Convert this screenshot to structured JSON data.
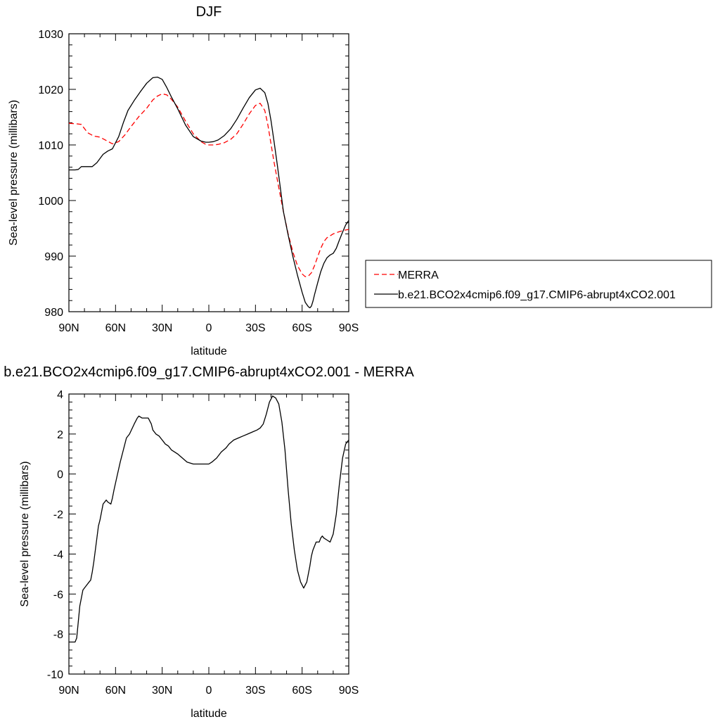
{
  "chart_data": [
    {
      "type": "line",
      "title": "DJF",
      "xlabel": "latitude",
      "ylabel": "Sea-level pressure (millibars)",
      "xlim": [
        90,
        -90
      ],
      "ylim": [
        980,
        1030
      ],
      "x_ticks": [
        90,
        60,
        30,
        0,
        -30,
        -60,
        -90
      ],
      "x_tick_labels": [
        "90N",
        "60N",
        "30N",
        "0",
        "30S",
        "60S",
        "90S"
      ],
      "y_ticks": [
        980,
        990,
        1000,
        1010,
        1020,
        1030
      ],
      "y_tick_labels": [
        "980",
        "990",
        "1000",
        "1010",
        "1020",
        "1030"
      ],
      "grid": false,
      "legend_position": "right",
      "series": [
        {
          "name": "MERRA",
          "color": "#ff0000",
          "dash": "dashed",
          "x": [
            90,
            85,
            82,
            78,
            74,
            70,
            66,
            62,
            58,
            54,
            50,
            45,
            40,
            36,
            33,
            30,
            27,
            24,
            20,
            15,
            10,
            5,
            2,
            0,
            -3,
            -6,
            -10,
            -14,
            -18,
            -22,
            -26,
            -30,
            -33,
            -36,
            -38,
            -40,
            -42,
            -45,
            -48,
            -51,
            -54,
            -57,
            -60,
            -62,
            -64,
            -66,
            -68,
            -70,
            -72,
            -74,
            -76,
            -80,
            -84,
            -88,
            -90
          ],
          "y": [
            1013.9,
            1013.8,
            1013.7,
            1012.2,
            1011.6,
            1011.4,
            1010.8,
            1010.2,
            1010.6,
            1011.8,
            1013.3,
            1015.1,
            1016.6,
            1018.1,
            1018.8,
            1019.2,
            1019.0,
            1018.2,
            1016.8,
            1014.3,
            1012.0,
            1010.6,
            1010.1,
            1010.0,
            1010.0,
            1010.1,
            1010.4,
            1011.0,
            1012.0,
            1013.7,
            1015.6,
            1017.1,
            1017.5,
            1016.2,
            1013.6,
            1010.2,
            1006.8,
            1002.3,
            998.0,
            994.0,
            990.8,
            988.3,
            986.8,
            986.3,
            986.4,
            987.0,
            988.3,
            989.9,
            991.4,
            992.6,
            993.3,
            994.0,
            994.4,
            994.7,
            994.8
          ]
        },
        {
          "name": "b.e21.BCO2x4cmip6.f09_g17.CMIP6-abrupt4xCO2.001",
          "color": "#000000",
          "dash": "solid",
          "x": [
            90,
            86,
            84,
            82,
            78,
            75,
            72,
            68,
            65,
            62,
            58,
            55,
            52,
            48,
            44,
            40,
            36,
            33,
            30,
            27,
            24,
            20,
            15,
            10,
            5,
            2,
            0,
            -3,
            -6,
            -10,
            -14,
            -18,
            -22,
            -26,
            -30,
            -33,
            -36,
            -38,
            -40,
            -42,
            -44,
            -46,
            -48,
            -51,
            -54,
            -57,
            -60,
            -62,
            -64,
            -65,
            -66,
            -67,
            -68,
            -70,
            -72,
            -74,
            -76,
            -78,
            -80,
            -82,
            -84,
            -86,
            -88,
            -90
          ],
          "y": [
            1005.5,
            1005.5,
            1005.6,
            1006.1,
            1006.1,
            1006.1,
            1006.8,
            1008.3,
            1008.9,
            1009.3,
            1011.5,
            1014.0,
            1016.2,
            1018.0,
            1019.6,
            1021.1,
            1022.1,
            1022.2,
            1021.8,
            1020.3,
            1018.6,
            1016.5,
            1013.6,
            1011.5,
            1010.7,
            1010.5,
            1010.5,
            1010.6,
            1010.9,
            1011.7,
            1012.9,
            1014.6,
            1016.6,
            1018.5,
            1019.9,
            1020.2,
            1019.4,
            1017.5,
            1014.4,
            1010.5,
            1006.5,
            1002.3,
            998.0,
            993.8,
            990.0,
            986.6,
            983.5,
            981.7,
            980.9,
            980.7,
            981.0,
            981.9,
            983.1,
            985.2,
            987.2,
            988.7,
            989.7,
            990.2,
            990.5,
            991.4,
            992.9,
            994.3,
            995.6,
            996.4
          ]
        }
      ]
    },
    {
      "type": "line",
      "title": "b.e21.BCO2x4cmip6.f09_g17.CMIP6-abrupt4xCO2.001 - MERRA",
      "xlabel": "latitude",
      "ylabel": "Sea-level pressure (millibars)",
      "xlim": [
        90,
        -90
      ],
      "ylim": [
        -10,
        4
      ],
      "x_ticks": [
        90,
        60,
        30,
        0,
        -30,
        -60,
        -90
      ],
      "x_tick_labels": [
        "90N",
        "60N",
        "30N",
        "0",
        "30S",
        "60S",
        "90S"
      ],
      "y_ticks": [
        -10,
        -8,
        -6,
        -4,
        -2,
        0,
        2,
        4
      ],
      "y_tick_labels": [
        "-10",
        "-8",
        "-6",
        "-4",
        "-2",
        "0",
        "2",
        "4"
      ],
      "grid": false,
      "series": [
        {
          "color": "#000000",
          "dash": "solid",
          "x": [
            90,
            86,
            85,
            84,
            83,
            82,
            81,
            79,
            77,
            76,
            75,
            74,
            72,
            71,
            70,
            68,
            66,
            65,
            63,
            62,
            61,
            59,
            57,
            55,
            53,
            51,
            48,
            46,
            45,
            43,
            41,
            39,
            37,
            36,
            34,
            32,
            30,
            29,
            28,
            26,
            24,
            22,
            20,
            17,
            14,
            10,
            7,
            4,
            2,
            1,
            0,
            -2,
            -5,
            -8,
            -11,
            -13,
            -16,
            -19,
            -22,
            -25,
            -28,
            -31,
            -33,
            -35,
            -37,
            -39,
            -41,
            -43,
            -45,
            -47,
            -49,
            -51,
            -53,
            -55,
            -57,
            -59,
            -61,
            -63,
            -65,
            -66,
            -67,
            -69,
            -71,
            -72,
            -73,
            -74,
            -76,
            -78,
            -80,
            -82,
            -84,
            -86,
            -88,
            -89,
            -90
          ],
          "y": [
            -8.4,
            -8.4,
            -8.2,
            -7.4,
            -6.6,
            -6.2,
            -5.8,
            -5.6,
            -5.4,
            -5.3,
            -4.9,
            -4.4,
            -3.2,
            -2.6,
            -2.3,
            -1.5,
            -1.3,
            -1.4,
            -1.5,
            -1.2,
            -0.8,
            -0.1,
            0.6,
            1.2,
            1.8,
            2.0,
            2.5,
            2.8,
            2.9,
            2.8,
            2.8,
            2.8,
            2.5,
            2.2,
            2.0,
            1.9,
            1.7,
            1.6,
            1.5,
            1.4,
            1.2,
            1.1,
            1.0,
            0.8,
            0.6,
            0.5,
            0.5,
            0.5,
            0.5,
            0.5,
            0.5,
            0.6,
            0.8,
            1.1,
            1.3,
            1.5,
            1.7,
            1.8,
            1.9,
            2.0,
            2.1,
            2.2,
            2.3,
            2.5,
            3.0,
            3.6,
            3.9,
            3.8,
            3.5,
            2.6,
            1.2,
            -0.8,
            -2.5,
            -3.8,
            -4.8,
            -5.4,
            -5.7,
            -5.4,
            -4.6,
            -4.1,
            -3.8,
            -3.4,
            -3.4,
            -3.2,
            -3.1,
            -3.2,
            -3.3,
            -3.4,
            -3.0,
            -2.0,
            -0.5,
            0.8,
            1.5,
            1.6,
            1.7
          ]
        }
      ]
    }
  ]
}
